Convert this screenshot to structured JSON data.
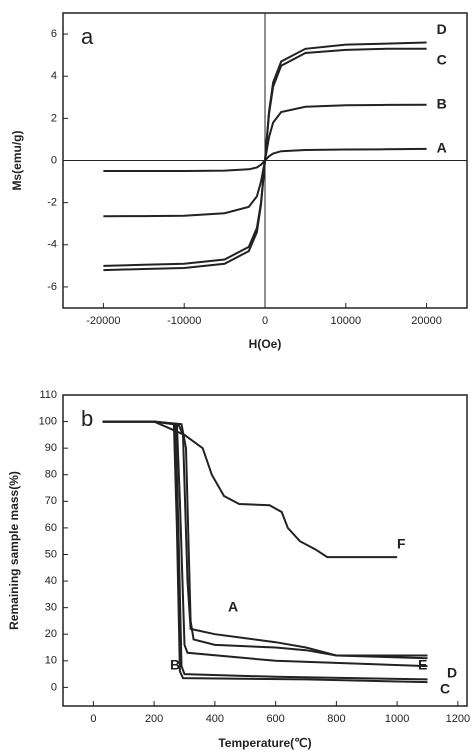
{
  "chart_data": [
    {
      "type": "line",
      "panel": "a",
      "x_label": "H(Oe)",
      "y_label": "Ms(emu/g)",
      "x": [
        -20000,
        -15000,
        -10000,
        -5000,
        -2000,
        -1000,
        -500,
        0,
        500,
        1000,
        2000,
        5000,
        10000,
        15000,
        20000
      ],
      "xlim": [
        -25000,
        25000
      ],
      "xticks": [
        -20000,
        -10000,
        0,
        10000,
        20000
      ],
      "ylim": [
        -7,
        7
      ],
      "yticks": [
        -6,
        -4,
        -2,
        0,
        2,
        4,
        6
      ],
      "zero_lines": true,
      "series": [
        {
          "name": "A",
          "color": "#222",
          "values": [
            -0.5,
            -0.5,
            -0.5,
            -0.48,
            -0.42,
            -0.33,
            -0.2,
            0,
            0.2,
            0.33,
            0.44,
            0.5,
            0.52,
            0.53,
            0.55
          ]
        },
        {
          "name": "B",
          "color": "#222",
          "values": [
            -2.65,
            -2.64,
            -2.62,
            -2.5,
            -2.2,
            -1.7,
            -1.0,
            0,
            1.1,
            1.8,
            2.3,
            2.55,
            2.62,
            2.64,
            2.65
          ]
        },
        {
          "name": "C",
          "color": "#222",
          "values": [
            -5.0,
            -4.95,
            -4.9,
            -4.7,
            -4.1,
            -3.2,
            -2.0,
            0,
            2.2,
            3.5,
            4.5,
            5.1,
            5.25,
            5.3,
            5.3
          ]
        },
        {
          "name": "D",
          "color": "#222",
          "values": [
            -5.2,
            -5.15,
            -5.1,
            -4.9,
            -4.3,
            -3.4,
            -2.1,
            0,
            2.3,
            3.7,
            4.7,
            5.3,
            5.5,
            5.55,
            5.6
          ]
        }
      ]
    },
    {
      "type": "line",
      "panel": "b",
      "x_label": "Temperature(℃)",
      "y_label": "Remaining sample mass(%)",
      "xlim": [
        -100,
        1230
      ],
      "xticks": [
        0,
        200,
        400,
        600,
        800,
        1000,
        1200
      ],
      "ylim": [
        -7,
        110
      ],
      "yticks": [
        0,
        10,
        20,
        30,
        40,
        50,
        60,
        70,
        80,
        90,
        100,
        110
      ],
      "zero_lines": false,
      "series": [
        {
          "name": "A",
          "color": "#222",
          "x": [
            30,
            200,
            280,
            295,
            310,
            320,
            400,
            600,
            700,
            800,
            1100
          ],
          "values": [
            100,
            100,
            99,
            95,
            40,
            22,
            20,
            17,
            15,
            12,
            11
          ]
        },
        {
          "name": "B",
          "color": "#222",
          "x": [
            30,
            200,
            270,
            280,
            290,
            300,
            600,
            1100
          ],
          "values": [
            100,
            100,
            99,
            60,
            8,
            5,
            4,
            3
          ]
        },
        {
          "name": "C",
          "color": "#222",
          "x": [
            30,
            200,
            265,
            275,
            285,
            295,
            700,
            1100
          ],
          "values": [
            100,
            100,
            99,
            60,
            6,
            3.5,
            3,
            2
          ]
        },
        {
          "name": "D",
          "color": "#222",
          "x": [
            30,
            200,
            275,
            285,
            300,
            310,
            600,
            1100
          ],
          "values": [
            100,
            100,
            99,
            70,
            16,
            13,
            10,
            8
          ]
        },
        {
          "name": "E",
          "color": "#222",
          "x": [
            30,
            200,
            290,
            305,
            320,
            330,
            400,
            600,
            700,
            800,
            1100
          ],
          "values": [
            100,
            100,
            99,
            90,
            25,
            18,
            16,
            15,
            14,
            12,
            12
          ]
        },
        {
          "name": "F",
          "color": "#222",
          "x": [
            30,
            200,
            300,
            360,
            390,
            430,
            480,
            580,
            620,
            640,
            680,
            730,
            770,
            1000
          ],
          "values": [
            100,
            100,
            95,
            90,
            80,
            72,
            69,
            68.5,
            66,
            60,
            55,
            52,
            49,
            49
          ]
        }
      ]
    }
  ]
}
